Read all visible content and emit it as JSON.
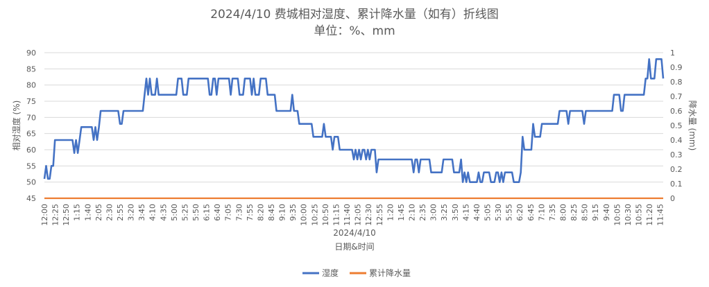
{
  "chart_data": {
    "type": "line",
    "title": "2024/4/10 费城相对湿度、累计降水量（如有）折线图",
    "subtitle": "单位：%、mm",
    "xlabel_date": "2024/4/10",
    "xlabel": "日期&时间",
    "ylabel_left": "相对湿度 (%)",
    "ylabel_right": "降水量 (mm)",
    "ylim_left": [
      45,
      90
    ],
    "yticks_left": [
      45,
      50,
      55,
      60,
      65,
      70,
      75,
      80,
      85,
      90
    ],
    "ylim_right": [
      0,
      1
    ],
    "yticks_right": [
      "0",
      "0.1",
      "0.2",
      "0.3",
      "0.4",
      "0.5",
      "0.6",
      "0.7",
      "0.8",
      "0.9",
      "1"
    ],
    "x_tick_labels": [
      "12:00",
      "12:25",
      "12:50",
      "1:15",
      "1:40",
      "2:05",
      "2:30",
      "2:55",
      "3:20",
      "3:45",
      "4:10",
      "4:35",
      "5:00",
      "5:25",
      "5:50",
      "6:15",
      "6:40",
      "7:05",
      "7:30",
      "7:55",
      "8:20",
      "8:45",
      "9:10",
      "9:35",
      "10:00",
      "10:25",
      "10:50",
      "11:15",
      "11:40",
      "12:05",
      "12:30",
      "12:55",
      "1:20",
      "1:45",
      "2:10",
      "2:35",
      "3:00",
      "3:25",
      "3:50",
      "4:15",
      "4:40",
      "5:05",
      "5:30",
      "5:55",
      "6:20",
      "6:45",
      "7:10",
      "7:35",
      "8:00",
      "8:25",
      "8:50",
      "9:15",
      "9:40",
      "10:05",
      "10:30",
      "10:55",
      "11:20",
      "11:45"
    ],
    "grid": true,
    "legend_position": "bottom",
    "series": [
      {
        "name": "湿度",
        "axis": "left",
        "color": "#4472C4",
        "values": [
          51,
          55,
          51,
          51,
          55,
          55,
          63,
          63,
          63,
          63,
          63,
          63,
          63,
          63,
          63,
          63,
          63,
          59,
          63,
          59,
          63,
          67,
          67,
          67,
          67,
          67,
          67,
          67,
          63,
          67,
          63,
          67,
          72,
          72,
          72,
          72,
          72,
          72,
          72,
          72,
          72,
          72,
          72,
          68,
          68,
          72,
          72,
          72,
          72,
          72,
          72,
          72,
          72,
          72,
          72,
          72,
          72,
          77,
          82,
          77,
          82,
          77,
          77,
          77,
          82,
          77,
          77,
          77,
          77,
          77,
          77,
          77,
          77,
          77,
          77,
          77,
          82,
          82,
          82,
          77,
          77,
          77,
          82,
          82,
          82,
          82,
          82,
          82,
          82,
          82,
          82,
          82,
          82,
          82,
          77,
          77,
          82,
          82,
          77,
          82,
          82,
          82,
          82,
          82,
          82,
          82,
          77,
          82,
          82,
          82,
          82,
          77,
          77,
          77,
          82,
          82,
          82,
          82,
          77,
          82,
          77,
          77,
          77,
          82,
          82,
          82,
          82,
          77,
          77,
          77,
          77,
          77,
          72,
          72,
          72,
          72,
          72,
          72,
          72,
          72,
          72,
          77,
          72,
          72,
          72,
          68,
          68,
          68,
          68,
          68,
          68,
          68,
          68,
          64,
          64,
          64,
          64,
          64,
          64,
          68,
          64,
          64,
          64,
          64,
          60,
          64,
          64,
          64,
          60,
          60,
          60,
          60,
          60,
          60,
          60,
          60,
          57,
          60,
          57,
          60,
          57,
          60,
          60,
          57,
          60,
          57,
          60,
          60,
          60,
          53,
          57,
          57,
          57,
          57,
          57,
          57,
          57,
          57,
          57,
          57,
          57,
          57,
          57,
          57,
          57,
          57,
          57,
          57,
          57,
          57,
          53,
          57,
          57,
          53,
          57,
          57,
          57,
          57,
          57,
          57,
          53,
          53,
          53,
          53,
          53,
          53,
          53,
          57,
          57,
          57,
          57,
          57,
          57,
          53,
          53,
          53,
          53,
          57,
          50,
          53,
          50,
          53,
          50,
          50,
          50,
          50,
          50,
          53,
          50,
          50,
          53,
          53,
          53,
          53,
          50,
          50,
          50,
          53,
          53,
          50,
          53,
          50,
          53,
          53,
          53,
          53,
          53,
          50,
          50,
          50,
          50,
          53,
          64,
          60,
          60,
          60,
          60,
          60,
          68,
          64,
          64,
          64,
          64,
          68,
          68,
          68,
          68,
          68,
          68,
          68,
          68,
          68,
          68,
          72,
          72,
          72,
          72,
          72,
          68,
          72,
          72,
          72,
          72,
          72,
          72,
          72,
          72,
          68,
          72,
          72,
          72,
          72,
          72,
          72,
          72,
          72,
          72,
          72,
          72,
          72,
          72,
          72,
          72,
          72,
          77,
          77,
          77,
          77,
          72,
          72,
          77,
          77,
          77,
          77,
          77,
          77,
          77,
          77,
          77,
          77,
          77,
          77,
          82,
          82,
          88,
          82,
          82,
          82,
          88,
          88,
          88,
          88,
          82
        ]
      },
      {
        "name": "累计降水量",
        "axis": "right",
        "color": "#ED7D31",
        "values": [
          0,
          0
        ]
      }
    ]
  }
}
